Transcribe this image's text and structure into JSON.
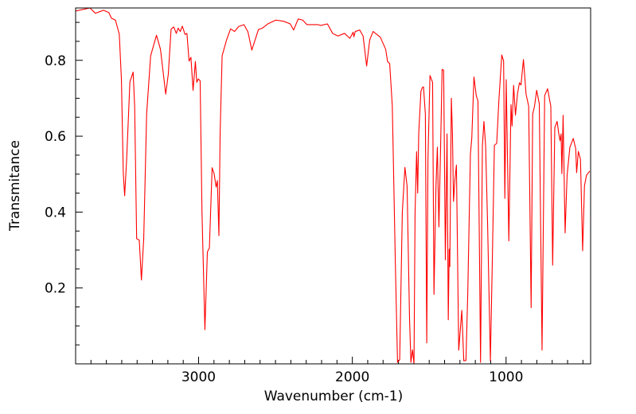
{
  "chart_data": {
    "type": "line",
    "title": "",
    "xlabel": "Wavenumber (cm-1)",
    "ylabel": "Transmitance",
    "xlim": [
      3800,
      450
    ],
    "ylim": [
      0,
      0.938
    ],
    "x_ticks": [
      3000,
      2000,
      1000
    ],
    "x_tick_labels": [
      "3000",
      "2000",
      "1000"
    ],
    "x_minor_step": 100,
    "y_ticks": [
      0.2,
      0.4,
      0.6,
      0.8
    ],
    "y_tick_labels": [
      "0.2",
      "0.4",
      "0.6",
      "0.8"
    ],
    "y_minor_step": 0.05,
    "grid": false,
    "series": [
      {
        "name": "spectrum",
        "color": "#ff0000",
        "points": [
          [
            3800,
            0.93
          ],
          [
            3707,
            0.938
          ],
          [
            3671,
            0.924
          ],
          [
            3619,
            0.932
          ],
          [
            3584,
            0.926
          ],
          [
            3567,
            0.911
          ],
          [
            3541,
            0.906
          ],
          [
            3516,
            0.869
          ],
          [
            3502,
            0.749
          ],
          [
            3490,
            0.504
          ],
          [
            3481,
            0.443
          ],
          [
            3468,
            0.539
          ],
          [
            3447,
            0.743
          ],
          [
            3426,
            0.769
          ],
          [
            3416,
            0.68
          ],
          [
            3403,
            0.33
          ],
          [
            3386,
            0.326
          ],
          [
            3372,
            0.221
          ],
          [
            3357,
            0.33
          ],
          [
            3338,
            0.659
          ],
          [
            3312,
            0.812
          ],
          [
            3274,
            0.866
          ],
          [
            3248,
            0.829
          ],
          [
            3214,
            0.711
          ],
          [
            3197,
            0.764
          ],
          [
            3179,
            0.882
          ],
          [
            3162,
            0.888
          ],
          [
            3145,
            0.871
          ],
          [
            3133,
            0.885
          ],
          [
            3119,
            0.876
          ],
          [
            3106,
            0.89
          ],
          [
            3088,
            0.868
          ],
          [
            3076,
            0.871
          ],
          [
            3062,
            0.798
          ],
          [
            3050,
            0.808
          ],
          [
            3036,
            0.721
          ],
          [
            3021,
            0.797
          ],
          [
            3012,
            0.742
          ],
          [
            3002,
            0.751
          ],
          [
            2990,
            0.746
          ],
          [
            2978,
            0.399
          ],
          [
            2959,
            0.09
          ],
          [
            2943,
            0.295
          ],
          [
            2930,
            0.305
          ],
          [
            2912,
            0.517
          ],
          [
            2899,
            0.501
          ],
          [
            2886,
            0.466
          ],
          [
            2878,
            0.483
          ],
          [
            2868,
            0.338
          ],
          [
            2860,
            0.609
          ],
          [
            2847,
            0.812
          ],
          [
            2818,
            0.854
          ],
          [
            2792,
            0.883
          ],
          [
            2766,
            0.876
          ],
          [
            2740,
            0.889
          ],
          [
            2705,
            0.894
          ],
          [
            2679,
            0.875
          ],
          [
            2654,
            0.827
          ],
          [
            2611,
            0.881
          ],
          [
            2585,
            0.885
          ],
          [
            2550,
            0.896
          ],
          [
            2498,
            0.906
          ],
          [
            2447,
            0.903
          ],
          [
            2404,
            0.896
          ],
          [
            2382,
            0.88
          ],
          [
            2352,
            0.909
          ],
          [
            2323,
            0.906
          ],
          [
            2295,
            0.894
          ],
          [
            2223,
            0.894
          ],
          [
            2206,
            0.892
          ],
          [
            2162,
            0.896
          ],
          [
            2128,
            0.871
          ],
          [
            2094,
            0.864
          ],
          [
            2051,
            0.871
          ],
          [
            2016,
            0.858
          ],
          [
            1995,
            0.874
          ],
          [
            1990,
            0.862
          ],
          [
            1981,
            0.876
          ],
          [
            1952,
            0.88
          ],
          [
            1930,
            0.864
          ],
          [
            1907,
            0.785
          ],
          [
            1887,
            0.854
          ],
          [
            1865,
            0.876
          ],
          [
            1818,
            0.861
          ],
          [
            1783,
            0.829
          ],
          [
            1771,
            0.797
          ],
          [
            1757,
            0.791
          ],
          [
            1740,
            0.679
          ],
          [
            1720,
            0.26
          ],
          [
            1706,
            0.004
          ],
          [
            1692,
            0.011
          ],
          [
            1675,
            0.399
          ],
          [
            1658,
            0.518
          ],
          [
            1644,
            0.469
          ],
          [
            1628,
            0.12
          ],
          [
            1619,
            0.004
          ],
          [
            1609,
            0.037
          ],
          [
            1599,
            0.001
          ],
          [
            1592,
            0.399
          ],
          [
            1582,
            0.559
          ],
          [
            1575,
            0.45
          ],
          [
            1568,
            0.609
          ],
          [
            1554,
            0.718
          ],
          [
            1545,
            0.728
          ],
          [
            1537,
            0.73
          ],
          [
            1525,
            0.658
          ],
          [
            1516,
            0.055
          ],
          [
            1508,
            0.539
          ],
          [
            1495,
            0.76
          ],
          [
            1478,
            0.742
          ],
          [
            1469,
            0.183
          ],
          [
            1456,
            0.469
          ],
          [
            1447,
            0.571
          ],
          [
            1437,
            0.361
          ],
          [
            1426,
            0.567
          ],
          [
            1416,
            0.776
          ],
          [
            1406,
            0.774
          ],
          [
            1395,
            0.274
          ],
          [
            1384,
            0.606
          ],
          [
            1376,
            0.116
          ],
          [
            1370,
            0.302
          ],
          [
            1366,
            0.256
          ],
          [
            1356,
            0.7
          ],
          [
            1349,
            0.609
          ],
          [
            1342,
            0.428
          ],
          [
            1333,
            0.483
          ],
          [
            1323,
            0.524
          ],
          [
            1308,
            0.036
          ],
          [
            1288,
            0.141
          ],
          [
            1275,
            0.008
          ],
          [
            1261,
            0.009
          ],
          [
            1249,
            0.19
          ],
          [
            1232,
            0.553
          ],
          [
            1223,
            0.595
          ],
          [
            1209,
            0.756
          ],
          [
            1194,
            0.707
          ],
          [
            1183,
            0.693
          ],
          [
            1166,
            0.004
          ],
          [
            1154,
            0.574
          ],
          [
            1144,
            0.639
          ],
          [
            1133,
            0.574
          ],
          [
            1120,
            0.365
          ],
          [
            1102,
            0.008
          ],
          [
            1090,
            0.26
          ],
          [
            1076,
            0.576
          ],
          [
            1061,
            0.581
          ],
          [
            1047,
            0.693
          ],
          [
            1028,
            0.814
          ],
          [
            1016,
            0.798
          ],
          [
            1008,
            0.436
          ],
          [
            999,
            0.749
          ],
          [
            982,
            0.324
          ],
          [
            968,
            0.683
          ],
          [
            961,
            0.627
          ],
          [
            951,
            0.734
          ],
          [
            939,
            0.655
          ],
          [
            926,
            0.711
          ],
          [
            913,
            0.741
          ],
          [
            903,
            0.735
          ],
          [
            887,
            0.802
          ],
          [
            870,
            0.711
          ],
          [
            853,
            0.679
          ],
          [
            837,
            0.148
          ],
          [
            827,
            0.658
          ],
          [
            815,
            0.679
          ],
          [
            801,
            0.721
          ],
          [
            784,
            0.686
          ],
          [
            766,
            0.036
          ],
          [
            749,
            0.707
          ],
          [
            730,
            0.725
          ],
          [
            709,
            0.679
          ],
          [
            697,
            0.26
          ],
          [
            683,
            0.623
          ],
          [
            668,
            0.639
          ],
          [
            658,
            0.609
          ],
          [
            649,
            0.588
          ],
          [
            642,
            0.606
          ],
          [
            637,
            0.501
          ],
          [
            629,
            0.655
          ],
          [
            616,
            0.345
          ],
          [
            603,
            0.497
          ],
          [
            585,
            0.571
          ],
          [
            563,
            0.594
          ],
          [
            547,
            0.567
          ],
          [
            541,
            0.504
          ],
          [
            530,
            0.56
          ],
          [
            516,
            0.539
          ],
          [
            502,
            0.298
          ],
          [
            490,
            0.469
          ],
          [
            477,
            0.497
          ],
          [
            456,
            0.508
          ]
        ]
      }
    ]
  }
}
